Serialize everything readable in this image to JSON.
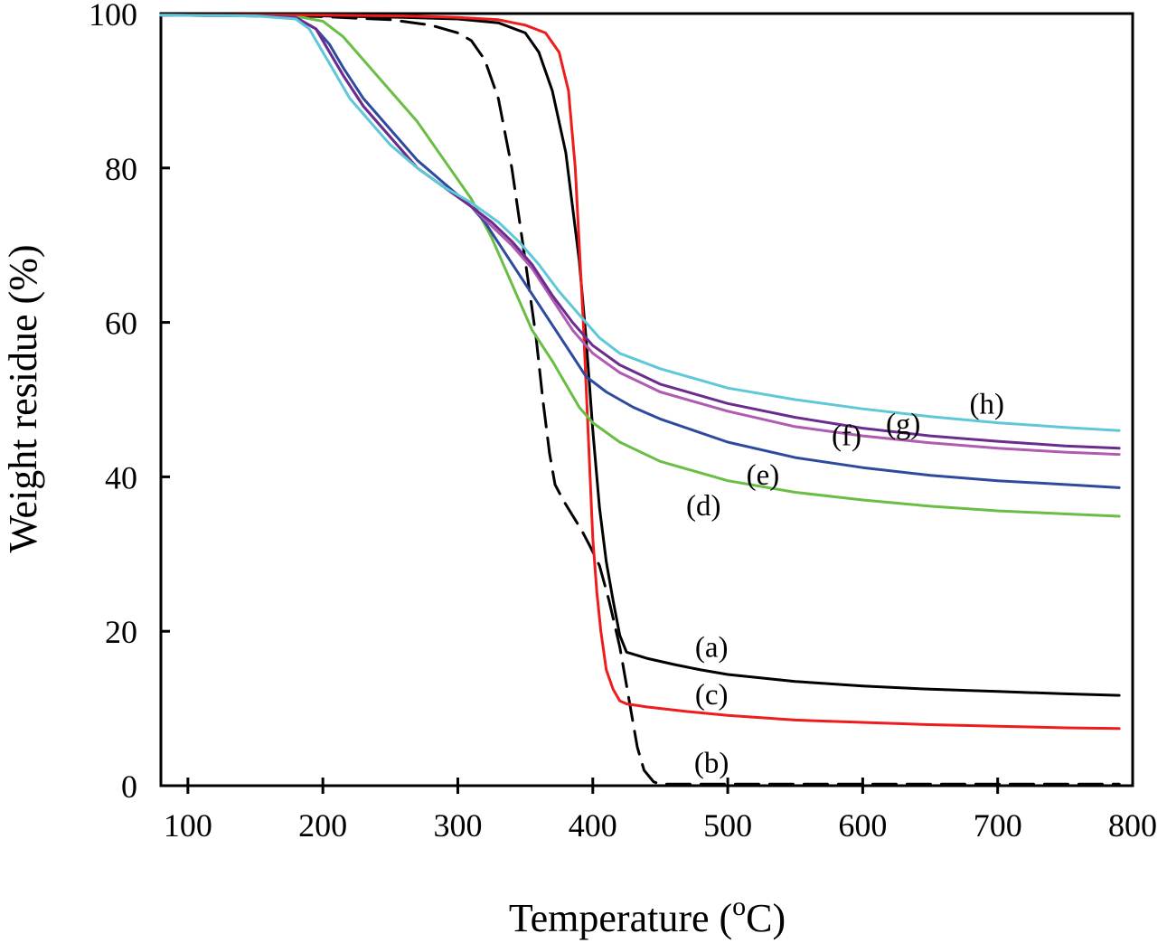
{
  "chart_data": {
    "type": "line",
    "xlabel": "Temperature (",
    "xlabel_sup": "o",
    "xlabel_end": "C)",
    "ylabel": "Weight residue (%)",
    "xlim": [
      80,
      800
    ],
    "ylim": [
      0,
      100
    ],
    "x_ticks": [
      100,
      200,
      300,
      400,
      500,
      600,
      700,
      800
    ],
    "y_ticks": [
      0,
      20,
      40,
      60,
      80,
      100
    ],
    "x_tick_labels": [
      "100",
      "200",
      "300",
      "400",
      "500",
      "600",
      "700",
      "800"
    ],
    "y_tick_labels": [
      "0",
      "20",
      "40",
      "60",
      "80",
      "100"
    ],
    "grid": false,
    "legend": "none",
    "series": [
      {
        "name": "(a)",
        "color": "#000000",
        "dashed": false,
        "label": {
          "text": "(a)",
          "x": 488,
          "y": 18
        },
        "points": [
          [
            80,
            99.8
          ],
          [
            150,
            99.8
          ],
          [
            200,
            99.7
          ],
          [
            260,
            99.5
          ],
          [
            300,
            99.3
          ],
          [
            330,
            98.8
          ],
          [
            350,
            97.5
          ],
          [
            360,
            95
          ],
          [
            370,
            90
          ],
          [
            380,
            82
          ],
          [
            390,
            68
          ],
          [
            395,
            58
          ],
          [
            400,
            46
          ],
          [
            405,
            36
          ],
          [
            410,
            29
          ],
          [
            415,
            24
          ],
          [
            420,
            19.5
          ],
          [
            425,
            17.3
          ],
          [
            440,
            16.5
          ],
          [
            460,
            15.7
          ],
          [
            480,
            15
          ],
          [
            500,
            14.4
          ],
          [
            550,
            13.5
          ],
          [
            600,
            12.9
          ],
          [
            650,
            12.5
          ],
          [
            700,
            12.2
          ],
          [
            750,
            11.9
          ],
          [
            790,
            11.7
          ]
        ]
      },
      {
        "name": "(b)",
        "color": "#000000",
        "dashed": true,
        "label": {
          "text": "(b)",
          "x": 488,
          "y": 3
        },
        "points": [
          [
            80,
            99.8
          ],
          [
            150,
            99.8
          ],
          [
            200,
            99.6
          ],
          [
            250,
            99.2
          ],
          [
            280,
            98.5
          ],
          [
            300,
            97.5
          ],
          [
            310,
            96.5
          ],
          [
            320,
            94
          ],
          [
            330,
            89
          ],
          [
            340,
            80
          ],
          [
            350,
            68
          ],
          [
            358,
            58
          ],
          [
            363,
            50
          ],
          [
            368,
            43
          ],
          [
            372,
            39
          ],
          [
            378,
            37
          ],
          [
            385,
            35
          ],
          [
            392,
            33
          ],
          [
            398,
            31
          ],
          [
            405,
            28.5
          ],
          [
            412,
            24
          ],
          [
            420,
            18
          ],
          [
            427,
            11
          ],
          [
            433,
            5
          ],
          [
            438,
            2
          ],
          [
            445,
            0.5
          ],
          [
            450,
            0.2
          ],
          [
            500,
            0.2
          ],
          [
            600,
            0.2
          ],
          [
            700,
            0.2
          ],
          [
            790,
            0.2
          ]
        ]
      },
      {
        "name": "(c)",
        "color": "#ee1c1c",
        "dashed": false,
        "label": {
          "text": "(c)",
          "x": 488,
          "y": 11.8
        },
        "points": [
          [
            80,
            99.8
          ],
          [
            150,
            99.8
          ],
          [
            200,
            99.8
          ],
          [
            260,
            99.7
          ],
          [
            300,
            99.5
          ],
          [
            330,
            99.2
          ],
          [
            350,
            98.5
          ],
          [
            365,
            97.5
          ],
          [
            375,
            95
          ],
          [
            382,
            90
          ],
          [
            387,
            80
          ],
          [
            390,
            70
          ],
          [
            393,
            60
          ],
          [
            396,
            48
          ],
          [
            398,
            40
          ],
          [
            400,
            32
          ],
          [
            403,
            25
          ],
          [
            406,
            20
          ],
          [
            410,
            15
          ],
          [
            415,
            12.5
          ],
          [
            420,
            11
          ],
          [
            425,
            10.6
          ],
          [
            440,
            10.2
          ],
          [
            470,
            9.6
          ],
          [
            500,
            9.1
          ],
          [
            550,
            8.5
          ],
          [
            600,
            8.2
          ],
          [
            650,
            7.9
          ],
          [
            700,
            7.7
          ],
          [
            750,
            7.5
          ],
          [
            790,
            7.4
          ]
        ]
      },
      {
        "name": "(d)",
        "color": "#6abd45",
        "dashed": false,
        "label": {
          "text": "(d)",
          "x": 482,
          "y": 36.3
        },
        "points": [
          [
            80,
            99.8
          ],
          [
            150,
            99.7
          ],
          [
            185,
            99.5
          ],
          [
            200,
            99
          ],
          [
            215,
            97
          ],
          [
            230,
            94
          ],
          [
            250,
            90
          ],
          [
            270,
            86
          ],
          [
            290,
            81
          ],
          [
            310,
            76
          ],
          [
            325,
            71
          ],
          [
            340,
            65
          ],
          [
            355,
            59
          ],
          [
            370,
            55
          ],
          [
            380,
            52
          ],
          [
            390,
            49
          ],
          [
            400,
            47
          ],
          [
            420,
            44.5
          ],
          [
            450,
            42
          ],
          [
            500,
            39.5
          ],
          [
            550,
            38
          ],
          [
            600,
            37
          ],
          [
            650,
            36.2
          ],
          [
            700,
            35.6
          ],
          [
            750,
            35.2
          ],
          [
            790,
            34.9
          ]
        ]
      },
      {
        "name": "(e)",
        "color": "#2e4a9e",
        "dashed": false,
        "label": {
          "text": "(e)",
          "x": 526,
          "y": 40.3
        },
        "points": [
          [
            80,
            99.8
          ],
          [
            150,
            99.7
          ],
          [
            180,
            99.5
          ],
          [
            195,
            98
          ],
          [
            205,
            96
          ],
          [
            215,
            93
          ],
          [
            230,
            89
          ],
          [
            250,
            85
          ],
          [
            270,
            81
          ],
          [
            290,
            78
          ],
          [
            310,
            75
          ],
          [
            320,
            73
          ],
          [
            335,
            69
          ],
          [
            350,
            65
          ],
          [
            365,
            61
          ],
          [
            380,
            57
          ],
          [
            395,
            53
          ],
          [
            410,
            51
          ],
          [
            430,
            49
          ],
          [
            450,
            47.5
          ],
          [
            500,
            44.5
          ],
          [
            550,
            42.5
          ],
          [
            600,
            41.2
          ],
          [
            650,
            40.2
          ],
          [
            700,
            39.5
          ],
          [
            750,
            39
          ],
          [
            790,
            38.6
          ]
        ]
      },
      {
        "name": "(f)",
        "color": "#b05bb0",
        "dashed": false,
        "label": {
          "text": "(f)",
          "x": 588,
          "y": 45.4
        },
        "points": [
          [
            80,
            99.8
          ],
          [
            150,
            99.7
          ],
          [
            180,
            99.5
          ],
          [
            195,
            98
          ],
          [
            205,
            95
          ],
          [
            215,
            92
          ],
          [
            230,
            88
          ],
          [
            250,
            84
          ],
          [
            270,
            80
          ],
          [
            290,
            77.5
          ],
          [
            310,
            75
          ],
          [
            325,
            72.5
          ],
          [
            340,
            70
          ],
          [
            355,
            67
          ],
          [
            370,
            63
          ],
          [
            385,
            59
          ],
          [
            400,
            56
          ],
          [
            420,
            53.5
          ],
          [
            450,
            51
          ],
          [
            500,
            48.5
          ],
          [
            550,
            46.5
          ],
          [
            600,
            45.3
          ],
          [
            650,
            44.4
          ],
          [
            700,
            43.7
          ],
          [
            750,
            43.2
          ],
          [
            790,
            42.9
          ]
        ]
      },
      {
        "name": "(g)",
        "color": "#6a2c8e",
        "dashed": false,
        "label": {
          "text": "(g)",
          "x": 630,
          "y": 46.9
        },
        "points": [
          [
            80,
            99.8
          ],
          [
            150,
            99.7
          ],
          [
            180,
            99.5
          ],
          [
            195,
            98
          ],
          [
            205,
            95
          ],
          [
            215,
            92
          ],
          [
            230,
            88
          ],
          [
            250,
            84
          ],
          [
            270,
            80
          ],
          [
            290,
            77.5
          ],
          [
            310,
            75
          ],
          [
            325,
            73
          ],
          [
            340,
            70.5
          ],
          [
            355,
            67.5
          ],
          [
            370,
            63.5
          ],
          [
            385,
            60
          ],
          [
            400,
            57
          ],
          [
            420,
            54.5
          ],
          [
            450,
            52
          ],
          [
            500,
            49.5
          ],
          [
            550,
            47.7
          ],
          [
            600,
            46.3
          ],
          [
            650,
            45.3
          ],
          [
            700,
            44.6
          ],
          [
            750,
            44
          ],
          [
            790,
            43.7
          ]
        ]
      },
      {
        "name": "(h)",
        "color": "#5fc8d8",
        "dashed": false,
        "label": {
          "text": "(h)",
          "x": 692,
          "y": 49.5
        },
        "points": [
          [
            80,
            99.8
          ],
          [
            150,
            99.7
          ],
          [
            180,
            99.3
          ],
          [
            190,
            98
          ],
          [
            200,
            95
          ],
          [
            210,
            92
          ],
          [
            220,
            89
          ],
          [
            235,
            86
          ],
          [
            250,
            83
          ],
          [
            270,
            80
          ],
          [
            290,
            77.5
          ],
          [
            310,
            75.5
          ],
          [
            330,
            73
          ],
          [
            345,
            70.5
          ],
          [
            360,
            67.5
          ],
          [
            375,
            64
          ],
          [
            390,
            61
          ],
          [
            405,
            58
          ],
          [
            420,
            56
          ],
          [
            450,
            54
          ],
          [
            500,
            51.5
          ],
          [
            550,
            50
          ],
          [
            600,
            48.8
          ],
          [
            650,
            47.8
          ],
          [
            700,
            47
          ],
          [
            750,
            46.4
          ],
          [
            790,
            46
          ]
        ]
      }
    ]
  }
}
